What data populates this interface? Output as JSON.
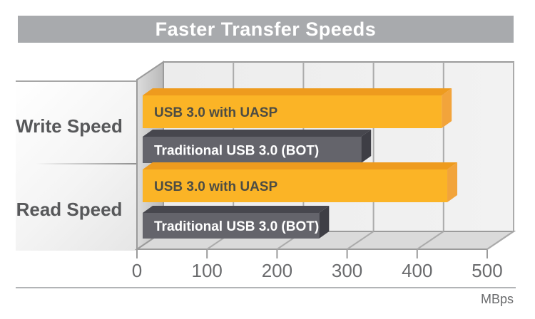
{
  "title": "Faster Transfer Speeds",
  "axis": {
    "tick_labels": [
      "0",
      "100",
      "200",
      "300",
      "400",
      "500"
    ],
    "max": 500,
    "unit_label": "MBps"
  },
  "categories": [
    {
      "label": "Write Speed",
      "bars": [
        {
          "label": "USB 3.0 with UASP",
          "value": 435
        },
        {
          "label": "Traditional USB 3.0 (BOT)",
          "value": 320
        }
      ]
    },
    {
      "label": "Read Speed",
      "bars": [
        {
          "label": "USB 3.0 with UASP",
          "value": 443
        },
        {
          "label": "Traditional USB 3.0 (BOT)",
          "value": 260
        }
      ]
    }
  ],
  "colors": {
    "banner_bg": "#A8AAAD",
    "banner_text": "#FFFFFF",
    "wall_fill": "#EFEFEF",
    "floor_fill": "#DADADA",
    "grid": "#ABABAB",
    "uasp_face": "#FBB426",
    "uasp_top": "#EE9B1E",
    "uasp_end": "#F2A43B",
    "uasp_text": "#4C4C44",
    "bot_face": "#64646B",
    "bot_top": "#47474E",
    "bot_end": "#3E3E45",
    "bot_text": "#FFFFFF",
    "category_text": "#57585A",
    "tick_text": "#6A6B6D"
  },
  "chart_data": {
    "type": "bar",
    "orientation": "horizontal",
    "style": "3d",
    "title": "Faster Transfer Speeds",
    "categories": [
      "Write Speed",
      "Read Speed"
    ],
    "series": [
      {
        "name": "USB 3.0 with UASP",
        "values": [
          435,
          443
        ],
        "color": "#FBB426"
      },
      {
        "name": "Traditional USB 3.0 (BOT)",
        "values": [
          320,
          260
        ],
        "color": "#64646B"
      }
    ],
    "xlabel": "MBps",
    "ylabel": "",
    "xlim": [
      0,
      500
    ],
    "xticks": [
      0,
      100,
      200,
      300,
      400,
      500
    ],
    "grid": true,
    "legend": "labels-inside-bars"
  }
}
